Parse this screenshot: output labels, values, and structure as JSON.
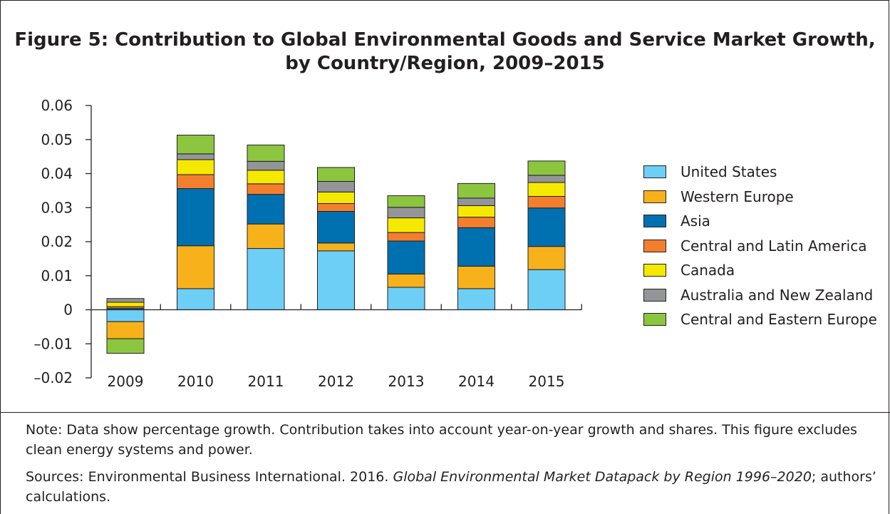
{
  "figure": {
    "title_line1": "Figure 5: Contribution to Global Environmental Goods and Service Market Growth,",
    "title_line2": "by Country/Region, 2009–2015"
  },
  "chart_data": {
    "type": "bar",
    "stacked": true,
    "categories": [
      "2009",
      "2010",
      "2011",
      "2012",
      "2013",
      "2014",
      "2015"
    ],
    "ylim": [
      -0.02,
      0.06
    ],
    "yticks": [
      -0.02,
      -0.01,
      0,
      0.01,
      0.02,
      0.03,
      0.04,
      0.05,
      0.06
    ],
    "ytick_labels": [
      "–0.02",
      "–0.01",
      "0",
      "0.01",
      "0.02",
      "0.03",
      "0.04",
      "0.05",
      "0.06"
    ],
    "legend_position": "right",
    "grid": false,
    "series": [
      {
        "name": "United States",
        "color": "#6dcff6",
        "values": [
          -0.0035,
          0.0062,
          0.018,
          0.0173,
          0.0066,
          0.0062,
          0.0118
        ]
      },
      {
        "name": "Western Europe",
        "color": "#f7b21b",
        "values": [
          -0.005,
          0.0126,
          0.0072,
          0.0023,
          0.0039,
          0.0066,
          0.0068
        ]
      },
      {
        "name": "Asia",
        "color": "#0071b0",
        "values": [
          0.0004,
          0.0168,
          0.0087,
          0.0093,
          0.0097,
          0.0113,
          0.0113
        ]
      },
      {
        "name": "Central and Latin America",
        "color": "#f37f2e",
        "values": [
          0.0005,
          0.0041,
          0.0031,
          0.0023,
          0.0025,
          0.0031,
          0.0034
        ]
      },
      {
        "name": "Canada",
        "color": "#f5e900",
        "values": [
          0.0013,
          0.0044,
          0.004,
          0.0034,
          0.0043,
          0.0034,
          0.0041
        ]
      },
      {
        "name": "Australia and New Zealand",
        "color": "#939598",
        "values": [
          0.0011,
          0.0017,
          0.0026,
          0.0031,
          0.0031,
          0.0022,
          0.0021
        ]
      },
      {
        "name": "Central and Eastern Europe",
        "color": "#8cc63f",
        "values": [
          -0.0043,
          0.0055,
          0.0048,
          0.0041,
          0.0034,
          0.0043,
          0.0042
        ]
      }
    ]
  },
  "footer": {
    "note": "Note: Data show percentage growth. Contribution takes into account year-on-year growth and shares. This figure excludes clean energy systems and power.",
    "sources_prefix": "Sources: Environmental Business International. 2016. ",
    "sources_title": "Global Environmental Market Datapack by Region 1996–2020",
    "sources_suffix": "; authors’ calculations."
  }
}
